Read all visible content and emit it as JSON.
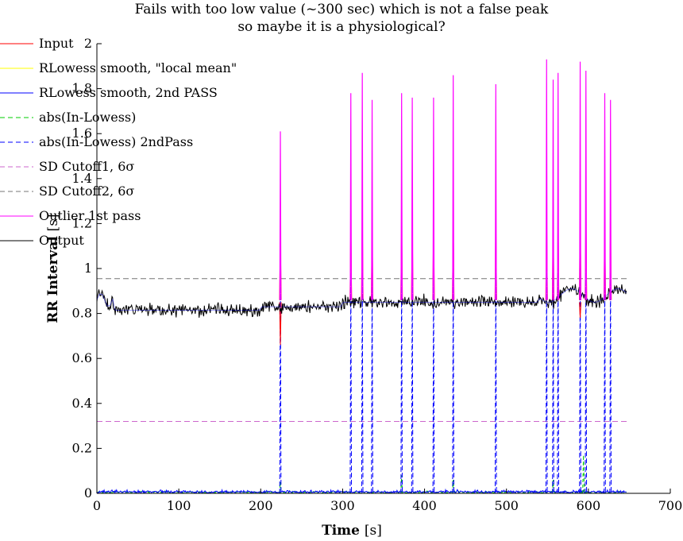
{
  "chart_data": {
    "type": "line",
    "title": [
      "Fails with too low value (~300 sec) which is not a false peak",
      "so maybe it is a physiological?"
    ],
    "xlabel": "Time",
    "xlabel_unit": "[s]",
    "ylabel": "RR Interval",
    "ylabel_unit": "[s]",
    "xlim": [
      0,
      700
    ],
    "ylim": [
      0,
      2
    ],
    "x_ticks": [
      "0",
      "100",
      "200",
      "300",
      "400",
      "500",
      "600",
      "700"
    ],
    "y_ticks": [
      "0",
      "0.2",
      "0.4",
      "0.6",
      "0.8",
      "1",
      "1.2",
      "1.4",
      "1.6",
      "1.8",
      "2"
    ],
    "x_tick_values": [
      0,
      100,
      200,
      300,
      400,
      500,
      600,
      700
    ],
    "y_tick_values": [
      0,
      0.2,
      0.4,
      0.6,
      0.8,
      1,
      1.2,
      1.4,
      1.6,
      1.8,
      2
    ],
    "grid": false,
    "legend_position": "top-left",
    "series": [
      {
        "name": "Input",
        "color": "#ff0000",
        "dash": "solid"
      },
      {
        "name": "RLowess smooth, \"local mean\"",
        "color": "#ffff00",
        "dash": "solid"
      },
      {
        "name": "RLowess smooth, 2nd PASS",
        "color": "#0000ff",
        "dash": "solid"
      },
      {
        "name": "abs(In-Lowess)",
        "color": "#00cc00",
        "dash": "dashed"
      },
      {
        "name": "abs(In-Lowess) 2ndPass",
        "color": "#0000ff",
        "dash": "dashed"
      },
      {
        "name": "SD Cutoff1, 6σ",
        "color": "#cc66cc",
        "dash": "dashed"
      },
      {
        "name": "SD Cutoff2, 6σ",
        "color": "#777777",
        "dash": "dashed"
      },
      {
        "name": "Outlier 1st pass",
        "color": "#ff00ff",
        "dash": "solid"
      },
      {
        "name": "Output",
        "color": "#000000",
        "dash": "solid"
      }
    ],
    "time_range": [
      0,
      647
    ],
    "baseline_rr": 0.83,
    "sd_cutoff1": 0.32,
    "sd_cutoff2": 0.955,
    "outlier_spikes": [
      {
        "t": 224,
        "peak": 1.61
      },
      {
        "t": 310,
        "peak": 1.78
      },
      {
        "t": 324,
        "peak": 1.87
      },
      {
        "t": 336,
        "peak": 1.75
      },
      {
        "t": 372,
        "peak": 1.78
      },
      {
        "t": 385,
        "peak": 1.76
      },
      {
        "t": 411,
        "peak": 1.76
      },
      {
        "t": 435,
        "peak": 1.86
      },
      {
        "t": 487,
        "peak": 1.82
      },
      {
        "t": 549,
        "peak": 1.93
      },
      {
        "t": 557,
        "peak": 1.84
      },
      {
        "t": 563,
        "peak": 1.87
      },
      {
        "t": 590,
        "peak": 1.92
      },
      {
        "t": 597,
        "peak": 1.88
      },
      {
        "t": 620,
        "peak": 1.78
      },
      {
        "t": 627,
        "peak": 1.75
      }
    ],
    "input_dips": [
      {
        "t": 224,
        "low": 0.66
      },
      {
        "t": 590,
        "low": 0.78
      }
    ],
    "green_bumps": [
      {
        "t": 224,
        "peak": 0.05
      },
      {
        "t": 372,
        "peak": 0.08
      },
      {
        "t": 435,
        "peak": 0.06
      },
      {
        "t": 557,
        "peak": 0.06
      },
      {
        "t": 594,
        "peak": 0.17
      }
    ]
  }
}
